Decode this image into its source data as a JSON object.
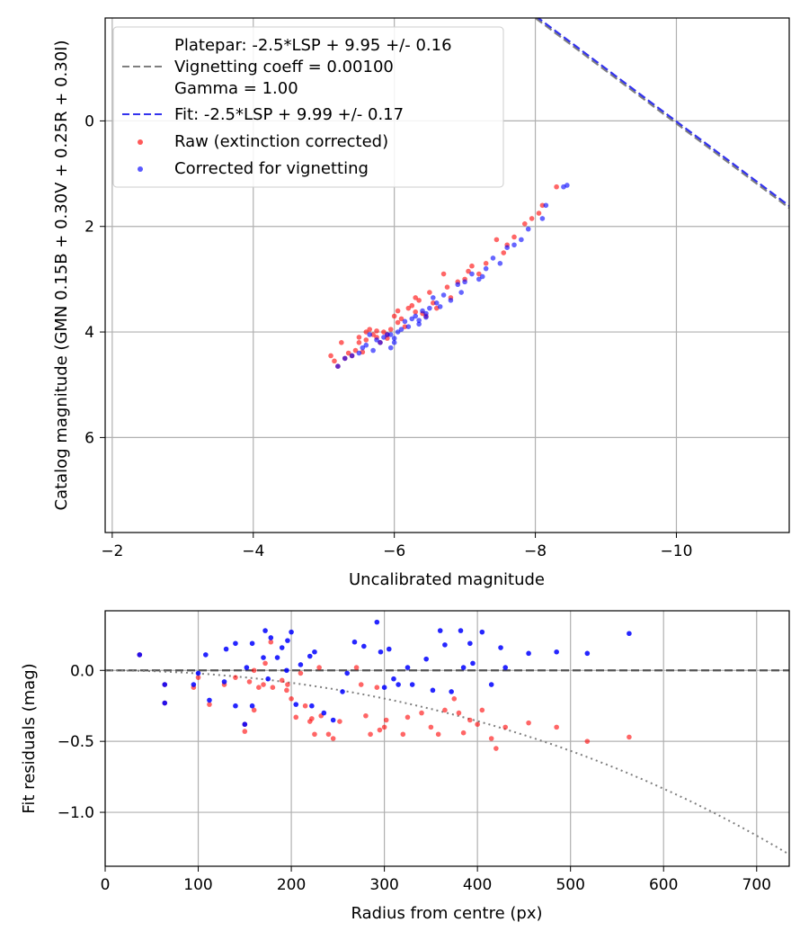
{
  "chart_data": [
    {
      "type": "scatter",
      "title": "",
      "xlabel": "Uncalibrated magnitude",
      "ylabel": "Catalog magnitude (GMN 0.15B + 0.30V + 0.25R + 0.30I)",
      "xlim": [
        -1.9,
        -11.6
      ],
      "ylim": [
        7.8,
        -1.95
      ],
      "x_ticks": [
        -2,
        -4,
        -6,
        -8,
        -10
      ],
      "x_tick_labels": [
        "−2",
        "−4",
        "−6",
        "−8",
        "−10"
      ],
      "y_ticks": [
        0,
        2,
        4,
        6
      ],
      "y_tick_labels": [
        "0",
        "2",
        "4",
        "6"
      ],
      "grid": true,
      "legend": {
        "position": "top-left",
        "platepar_lines": [
          "Platepar: -2.5*LSP + 9.95 +/- 0.16",
          "Vignetting coeff = 0.00100",
          "Gamma = 1.00"
        ],
        "fit": "Fit: -2.5*LSP + 9.99 +/- 0.17",
        "raw": "Raw (extinction corrected)",
        "corrected": "Corrected for vignetting"
      },
      "lines": [
        {
          "name": "Platepar",
          "slope": -1,
          "intercept": -9.95,
          "color": "#7f7f7f",
          "style": "dashed"
        },
        {
          "name": "Fit",
          "slope": -1,
          "intercept": -9.99,
          "color": "#3333ee",
          "style": "dashed"
        }
      ],
      "series": [
        {
          "name": "Raw (extinction corrected)",
          "color": "#ff0000",
          "points": [
            [
              -5.1,
              4.45
            ],
            [
              -5.15,
              4.55
            ],
            [
              -5.2,
              4.65
            ],
            [
              -5.3,
              4.5
            ],
            [
              -5.35,
              4.4
            ],
            [
              -5.4,
              4.45
            ],
            [
              -5.5,
              4.2
            ],
            [
              -5.5,
              4.1
            ],
            [
              -5.6,
              4.15
            ],
            [
              -5.6,
              4.0
            ],
            [
              -5.65,
              3.95
            ],
            [
              -5.7,
              4.05
            ],
            [
              -5.75,
              4.1
            ],
            [
              -5.8,
              4.2
            ],
            [
              -5.85,
              4.0
            ],
            [
              -5.9,
              4.05
            ],
            [
              -5.95,
              3.95
            ],
            [
              -6.0,
              3.7
            ],
            [
              -6.05,
              3.6
            ],
            [
              -6.1,
              3.75
            ],
            [
              -6.15,
              3.9
            ],
            [
              -6.25,
              3.5
            ],
            [
              -6.3,
              3.35
            ],
            [
              -6.35,
              3.4
            ],
            [
              -6.4,
              3.65
            ],
            [
              -6.5,
              3.25
            ],
            [
              -6.55,
              3.45
            ],
            [
              -6.6,
              3.55
            ],
            [
              -6.7,
              2.9
            ],
            [
              -6.8,
              3.35
            ],
            [
              -6.9,
              3.05
            ],
            [
              -7.0,
              3.0
            ],
            [
              -7.1,
              2.75
            ],
            [
              -7.2,
              2.9
            ],
            [
              -7.3,
              2.7
            ],
            [
              -7.45,
              2.25
            ],
            [
              -7.55,
              2.5
            ],
            [
              -7.7,
              2.2
            ],
            [
              -7.85,
              1.95
            ],
            [
              -7.95,
              1.85
            ],
            [
              -8.1,
              1.6
            ],
            [
              -8.3,
              1.25
            ],
            [
              -5.25,
              4.2
            ],
            [
              -5.45,
              4.35
            ],
            [
              -5.75,
              3.98
            ],
            [
              -6.05,
              3.82
            ],
            [
              -6.3,
              3.62
            ],
            [
              -6.45,
              3.7
            ],
            [
              -6.75,
              3.15
            ],
            [
              -7.05,
              2.85
            ],
            [
              -7.6,
              2.35
            ],
            [
              -8.05,
              1.75
            ],
            [
              -5.55,
              4.38
            ],
            [
              -5.9,
              4.12
            ],
            [
              -6.2,
              3.55
            ]
          ]
        },
        {
          "name": "Corrected for vignetting",
          "color": "#0000ff",
          "points": [
            [
              -5.2,
              4.65
            ],
            [
              -5.3,
              4.5
            ],
            [
              -5.4,
              4.45
            ],
            [
              -5.5,
              4.4
            ],
            [
              -5.55,
              4.3
            ],
            [
              -5.6,
              4.25
            ],
            [
              -5.7,
              4.35
            ],
            [
              -5.75,
              4.15
            ],
            [
              -5.8,
              4.2
            ],
            [
              -5.85,
              4.1
            ],
            [
              -5.9,
              4.05
            ],
            [
              -5.95,
              4.3
            ],
            [
              -6.0,
              4.2
            ],
            [
              -6.05,
              4.0
            ],
            [
              -6.1,
              3.95
            ],
            [
              -6.2,
              3.9
            ],
            [
              -6.25,
              3.75
            ],
            [
              -6.3,
              3.7
            ],
            [
              -6.35,
              3.85
            ],
            [
              -6.4,
              3.6
            ],
            [
              -6.45,
              3.65
            ],
            [
              -6.5,
              3.55
            ],
            [
              -6.55,
              3.35
            ],
            [
              -6.6,
              3.45
            ],
            [
              -6.7,
              3.3
            ],
            [
              -6.8,
              3.4
            ],
            [
              -6.9,
              3.1
            ],
            [
              -7.0,
              3.05
            ],
            [
              -7.1,
              2.9
            ],
            [
              -7.2,
              3.0
            ],
            [
              -7.3,
              2.8
            ],
            [
              -7.4,
              2.6
            ],
            [
              -7.5,
              2.7
            ],
            [
              -7.6,
              2.4
            ],
            [
              -7.8,
              2.25
            ],
            [
              -7.9,
              2.05
            ],
            [
              -8.1,
              1.85
            ],
            [
              -8.15,
              1.6
            ],
            [
              -8.4,
              1.25
            ],
            [
              -8.45,
              1.22
            ],
            [
              -5.65,
              4.05
            ],
            [
              -5.95,
              4.05
            ],
            [
              -6.15,
              3.8
            ],
            [
              -6.45,
              3.72
            ],
            [
              -6.65,
              3.52
            ],
            [
              -6.95,
              3.25
            ],
            [
              -7.25,
              2.95
            ],
            [
              -7.7,
              2.35
            ],
            [
              -6.0,
              4.12
            ],
            [
              -6.35,
              3.78
            ]
          ]
        }
      ]
    },
    {
      "type": "scatter",
      "title": "",
      "xlabel": "Radius from centre (px)",
      "ylabel": "Fit residuals (mag)",
      "xlim": [
        0,
        735
      ],
      "ylim": [
        -1.38,
        0.42
      ],
      "x_ticks": [
        0,
        100,
        200,
        300,
        400,
        500,
        600,
        700
      ],
      "x_tick_labels": [
        "0",
        "100",
        "200",
        "300",
        "400",
        "500",
        "600",
        "700"
      ],
      "y_ticks": [
        0.0,
        -0.5,
        -1.0
      ],
      "y_tick_labels": [
        "0.0",
        "−0.5",
        "−1.0"
      ],
      "grid": true,
      "reference_line": {
        "y": 0.0,
        "color": "#555555",
        "style": "dashed"
      },
      "vignetting_curve": {
        "coeff": 0.001,
        "color": "#7f7f7f",
        "style": "dotted"
      },
      "series": [
        {
          "name": "Raw (extinction corrected)",
          "color": "#ff0000",
          "points": [
            [
              37,
              0.11
            ],
            [
              64,
              -0.1
            ],
            [
              64,
              -0.23
            ],
            [
              95,
              -0.12
            ],
            [
              100,
              -0.05
            ],
            [
              112,
              -0.24
            ],
            [
              128,
              -0.1
            ],
            [
              140,
              -0.05
            ],
            [
              150,
              -0.43
            ],
            [
              150,
              -0.38
            ],
            [
              155,
              -0.08
            ],
            [
              160,
              -0.28
            ],
            [
              165,
              -0.12
            ],
            [
              170,
              -0.1
            ],
            [
              172,
              0.05
            ],
            [
              178,
              0.2
            ],
            [
              180,
              -0.12
            ],
            [
              190,
              -0.07
            ],
            [
              195,
              -0.14
            ],
            [
              196,
              -0.1
            ],
            [
              200,
              -0.2
            ],
            [
              205,
              -0.33
            ],
            [
              215,
              -0.25
            ],
            [
              220,
              -0.36
            ],
            [
              222,
              -0.34
            ],
            [
              225,
              -0.45
            ],
            [
              232,
              -0.32
            ],
            [
              240,
              -0.45
            ],
            [
              245,
              -0.48
            ],
            [
              252,
              -0.36
            ],
            [
              270,
              0.02
            ],
            [
              280,
              -0.32
            ],
            [
              285,
              -0.45
            ],
            [
              292,
              -0.12
            ],
            [
              295,
              -0.42
            ],
            [
              300,
              -0.4
            ],
            [
              302,
              -0.35
            ],
            [
              320,
              -0.45
            ],
            [
              325,
              -0.33
            ],
            [
              340,
              -0.3
            ],
            [
              350,
              -0.4
            ],
            [
              358,
              -0.45
            ],
            [
              365,
              -0.28
            ],
            [
              375,
              -0.2
            ],
            [
              380,
              -0.3
            ],
            [
              385,
              -0.44
            ],
            [
              392,
              -0.35
            ],
            [
              400,
              -0.38
            ],
            [
              405,
              -0.28
            ],
            [
              415,
              -0.48
            ],
            [
              420,
              -0.55
            ],
            [
              430,
              -0.4
            ],
            [
              455,
              -0.37
            ],
            [
              485,
              -0.4
            ],
            [
              518,
              -0.5
            ],
            [
              563,
              -0.47
            ],
            [
              160,
              0.0
            ],
            [
              210,
              -0.02
            ],
            [
              230,
              0.02
            ],
            [
              275,
              -0.1
            ]
          ]
        },
        {
          "name": "Corrected for vignetting",
          "color": "#0000ff",
          "points": [
            [
              37,
              0.11
            ],
            [
              64,
              -0.1
            ],
            [
              64,
              -0.23
            ],
            [
              95,
              -0.1
            ],
            [
              100,
              -0.02
            ],
            [
              108,
              0.11
            ],
            [
              112,
              -0.21
            ],
            [
              128,
              -0.08
            ],
            [
              130,
              0.15
            ],
            [
              140,
              0.19
            ],
            [
              140,
              -0.25
            ],
            [
              150,
              -0.38
            ],
            [
              152,
              0.02
            ],
            [
              158,
              -0.25
            ],
            [
              158,
              0.19
            ],
            [
              170,
              0.09
            ],
            [
              172,
              0.28
            ],
            [
              178,
              0.23
            ],
            [
              185,
              0.09
            ],
            [
              190,
              0.16
            ],
            [
              195,
              0.0
            ],
            [
              196,
              0.21
            ],
            [
              200,
              0.27
            ],
            [
              205,
              -0.24
            ],
            [
              210,
              0.04
            ],
            [
              220,
              0.1
            ],
            [
              222,
              -0.25
            ],
            [
              225,
              0.13
            ],
            [
              235,
              -0.3
            ],
            [
              245,
              -0.35
            ],
            [
              260,
              -0.02
            ],
            [
              268,
              0.2
            ],
            [
              278,
              0.17
            ],
            [
              292,
              0.34
            ],
            [
              296,
              0.13
            ],
            [
              300,
              -0.12
            ],
            [
              305,
              0.15
            ],
            [
              310,
              -0.06
            ],
            [
              325,
              0.02
            ],
            [
              330,
              -0.1
            ],
            [
              345,
              0.08
            ],
            [
              352,
              -0.14
            ],
            [
              360,
              0.28
            ],
            [
              365,
              0.18
            ],
            [
              372,
              -0.15
            ],
            [
              382,
              0.28
            ],
            [
              385,
              0.02
            ],
            [
              392,
              0.19
            ],
            [
              395,
              0.05
            ],
            [
              405,
              0.27
            ],
            [
              415,
              -0.1
            ],
            [
              425,
              0.16
            ],
            [
              430,
              0.02
            ],
            [
              455,
              0.12
            ],
            [
              485,
              0.13
            ],
            [
              518,
              0.12
            ],
            [
              563,
              0.26
            ],
            [
              175,
              -0.06
            ],
            [
              255,
              -0.15
            ],
            [
              315,
              -0.1
            ]
          ]
        }
      ]
    }
  ]
}
